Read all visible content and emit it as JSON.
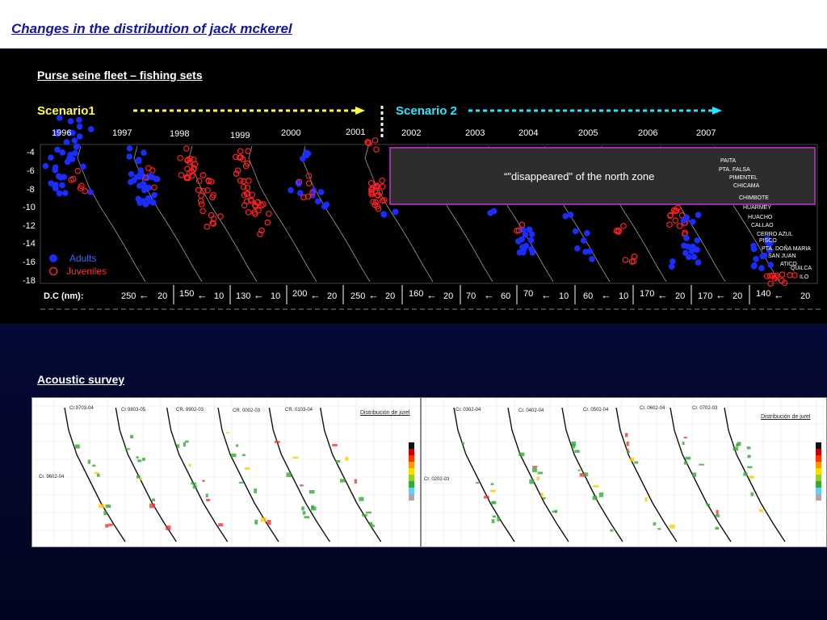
{
  "title": "Changes in the distribution of jack mckerel",
  "purse_section": {
    "heading": "Purse seine fleet – fishing sets",
    "scenario1": "Scenario1",
    "scenario2": "Scenario 2",
    "years": [
      "1996",
      "1997",
      "1998",
      "1999",
      "2000",
      "2001",
      "2002",
      "2003",
      "2004",
      "2005",
      "2006",
      "2007"
    ],
    "y_ticks": [
      "-4",
      "-6",
      "-8",
      "-10",
      "-12",
      "-14",
      "-16",
      "-18"
    ],
    "legend": {
      "adults": "Adults",
      "juveniles": "Juveniles",
      "adults_color": "#1a2cff",
      "juveniles_color": "#ff2020"
    },
    "annotation": "“\"disappeared\" of the north zone",
    "dc_label": "D.C (nm):",
    "dc_values": [
      "250",
      "20",
      "150",
      "10",
      "130",
      "10",
      "200",
      "20",
      "250",
      "20",
      "160",
      "20",
      "70",
      "60",
      "70",
      "10",
      "60",
      "10",
      "170",
      "20",
      "170",
      "20",
      "140",
      "20"
    ],
    "towns": [
      "PAITA",
      "PTA. FALSA",
      "PIMENTEL",
      "CHICAMA",
      "CHIMBOTE",
      "HUARMEY",
      "HUACHO",
      "CALLAO",
      "CERRO AZUL",
      "PISCO",
      "PTA. DOÑA MARIA",
      "SAN JUAN",
      "ATICO",
      "QUILCA",
      "ILO"
    ]
  },
  "acoustic_section": {
    "heading": "Acoustic survey",
    "panel1_cruises": [
      "Cr.9703-04",
      "Cr 9803-05",
      "CR. 9902-03",
      "CR. 0002-03",
      "CR. 0103-04",
      "Cr. 9602-04"
    ],
    "panel2_cruises": [
      "Cr. 0302-04",
      "Cr. 0402-04",
      "Cr. 0502-04",
      "Cr. 0602-04",
      "Cr. 0702-03",
      "Cr. 0202-03"
    ],
    "dist_title": "Distribución de jurel"
  }
}
